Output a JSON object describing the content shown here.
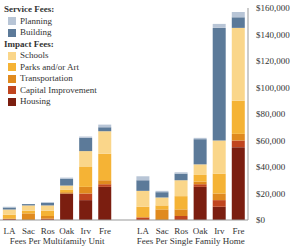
{
  "chart_data": {
    "type": "bar",
    "stacked": true,
    "categories": [
      "LA",
      "Sac",
      "Ros",
      "Oak",
      "Irv",
      "Fre",
      null,
      "LA",
      "Sac",
      "Ros",
      "Oak",
      "Irv",
      "Fre"
    ],
    "x_group_labels": [
      "Fees Per Multifamily Unit",
      "Fees Per Single Family Home"
    ],
    "legend_groups": [
      {
        "title": "Service Fees:",
        "series": [
          "Planning",
          "Building"
        ]
      },
      {
        "title": "Impact Fees:",
        "series": [
          "Schools",
          "Parks and/or Art",
          "Transportation",
          "Capital Improvement",
          "Housing"
        ]
      }
    ],
    "series": [
      {
        "name": "Planning",
        "color": "#b8c5d6",
        "values": [
          500,
          0,
          500,
          1000,
          1000,
          2000,
          null,
          3000,
          1000,
          1000,
          1000,
          3000,
          4000
        ]
      },
      {
        "name": "Building",
        "color": "#5c7a99",
        "values": [
          1500,
          1000,
          2000,
          5000,
          10000,
          3000,
          null,
          8000,
          4000,
          5000,
          19000,
          85000,
          8000
        ]
      },
      {
        "name": "Schools",
        "color": "#fad68a",
        "values": [
          4000,
          4000,
          4000,
          3000,
          12000,
          17000,
          null,
          12000,
          6000,
          12000,
          8000,
          25000,
          55000
        ]
      },
      {
        "name": "Parks and/or Art",
        "color": "#f5b335",
        "values": [
          3000,
          2000,
          4000,
          2000,
          15000,
          20000,
          null,
          8000,
          3000,
          10000,
          5000,
          15000,
          25000
        ]
      },
      {
        "name": "Transportation",
        "color": "#e08a1e",
        "values": [
          0,
          5000,
          2000,
          1000,
          5000,
          3000,
          null,
          0,
          8000,
          5000,
          2000,
          5000,
          5000
        ]
      },
      {
        "name": "Capital Improvement",
        "color": "#c0451f",
        "values": [
          1000,
          0,
          1000,
          0,
          5000,
          2000,
          null,
          2000,
          0,
          3000,
          2000,
          5000,
          5000
        ]
      },
      {
        "name": "Housing",
        "color": "#7b1e10",
        "values": [
          0,
          0,
          0,
          20000,
          15000,
          25000,
          null,
          0,
          0,
          0,
          25000,
          10000,
          55000
        ]
      }
    ],
    "ylim": [
      0,
      160000
    ],
    "yticks": [
      {
        "value": 0,
        "label": "$0"
      },
      {
        "value": 20000,
        "label": "$20,000"
      },
      {
        "value": 40000,
        "label": "$40,000"
      },
      {
        "value": 60000,
        "label": "$60,000"
      },
      {
        "value": 80000,
        "label": "$80,000"
      },
      {
        "value": 100000,
        "label": "$100,000"
      },
      {
        "value": 120000,
        "label": "$120,000"
      },
      {
        "value": 140000,
        "label": "$140,000"
      },
      {
        "value": 160000,
        "label": "$160,000"
      }
    ],
    "grid": false
  }
}
